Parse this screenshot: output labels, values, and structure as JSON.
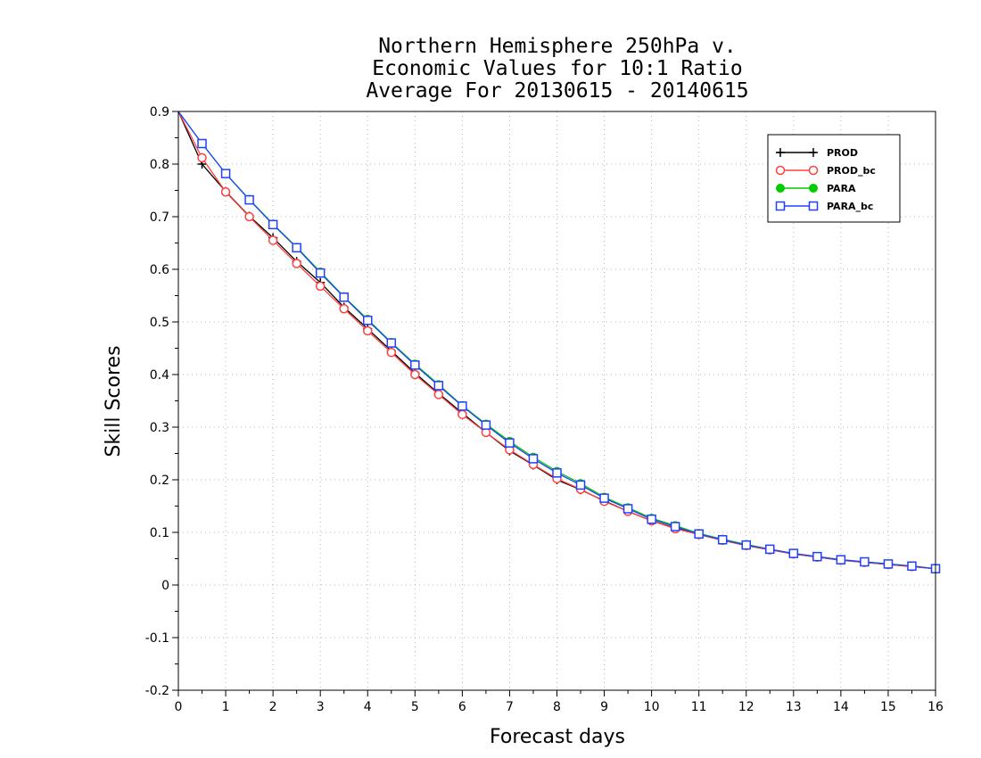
{
  "chart_data": {
    "type": "line",
    "title_lines": [
      "Northern Hemisphere 250hPa v.",
      "Economic Values for 10:1 Ratio",
      "Average For 20130615 - 20140615"
    ],
    "xlabel": "Forecast days",
    "ylabel": "Skill Scores",
    "xlim": [
      0,
      16
    ],
    "ylim": [
      -0.2,
      0.9
    ],
    "x_ticks": [
      0,
      1,
      2,
      3,
      4,
      5,
      6,
      7,
      8,
      9,
      10,
      11,
      12,
      13,
      14,
      15,
      16
    ],
    "y_ticks": [
      -0.2,
      -0.1,
      0,
      0.1,
      0.2,
      0.3,
      0.4,
      0.5,
      0.6,
      0.7,
      0.8,
      0.9
    ],
    "y_tick_labels": [
      "-0.2",
      "-0.1",
      "0",
      "0.1",
      "0.2",
      "0.3",
      "0.4",
      "0.5",
      "0.6",
      "0.7",
      "0.8",
      "0.9"
    ],
    "grid": true,
    "legend_position": "top-right",
    "x": [
      0,
      0.5,
      1,
      1.5,
      2,
      2.5,
      3,
      3.5,
      4,
      4.5,
      5,
      5.5,
      6,
      6.5,
      7,
      7.5,
      8,
      8.5,
      9,
      9.5,
      10,
      10.5,
      11,
      11.5,
      12,
      12.5,
      13,
      13.5,
      14,
      14.5,
      15,
      15.5,
      16
    ],
    "series": [
      {
        "name": "PROD",
        "color": "#000000",
        "marker": "plus",
        "values": [
          0.9,
          0.8,
          0.748,
          0.701,
          0.66,
          0.615,
          0.575,
          0.528,
          0.487,
          0.445,
          0.403,
          0.364,
          0.327,
          0.29,
          0.255,
          0.228,
          0.2,
          0.181,
          0.16,
          0.14,
          0.122,
          0.108,
          0.096,
          0.085,
          0.075,
          0.067,
          0.059,
          0.053,
          0.047,
          0.043,
          0.039,
          0.035,
          0.031
        ]
      },
      {
        "name": "PROD_bc",
        "color": "#ff4040",
        "marker": "open-circle",
        "values": [
          0.9,
          0.812,
          0.747,
          0.7,
          0.655,
          0.611,
          0.568,
          0.525,
          0.483,
          0.442,
          0.4,
          0.362,
          0.324,
          0.29,
          0.257,
          0.229,
          0.202,
          0.182,
          0.159,
          0.14,
          0.122,
          0.107,
          0.096,
          0.085,
          0.075,
          0.067,
          0.059,
          0.053,
          0.047,
          0.043,
          0.039,
          0.035,
          0.031
        ]
      },
      {
        "name": "PARA",
        "color": "#00cc00",
        "marker": "filled-circle",
        "values": [
          0.9,
          0.839,
          0.782,
          0.733,
          0.686,
          0.642,
          0.595,
          0.548,
          0.505,
          0.461,
          0.42,
          0.381,
          0.341,
          0.306,
          0.273,
          0.243,
          0.216,
          0.193,
          0.167,
          0.147,
          0.127,
          0.113,
          0.098,
          0.087,
          0.077,
          0.068,
          0.06,
          0.054,
          0.048,
          0.044,
          0.04,
          0.036,
          0.031
        ]
      },
      {
        "name": "PARA_bc",
        "color": "#2040ff",
        "marker": "open-square",
        "values": [
          0.9,
          0.839,
          0.782,
          0.732,
          0.685,
          0.641,
          0.593,
          0.547,
          0.503,
          0.46,
          0.418,
          0.379,
          0.34,
          0.304,
          0.27,
          0.24,
          0.213,
          0.19,
          0.165,
          0.145,
          0.125,
          0.111,
          0.097,
          0.086,
          0.076,
          0.068,
          0.06,
          0.054,
          0.048,
          0.044,
          0.04,
          0.036,
          0.031
        ]
      }
    ]
  }
}
